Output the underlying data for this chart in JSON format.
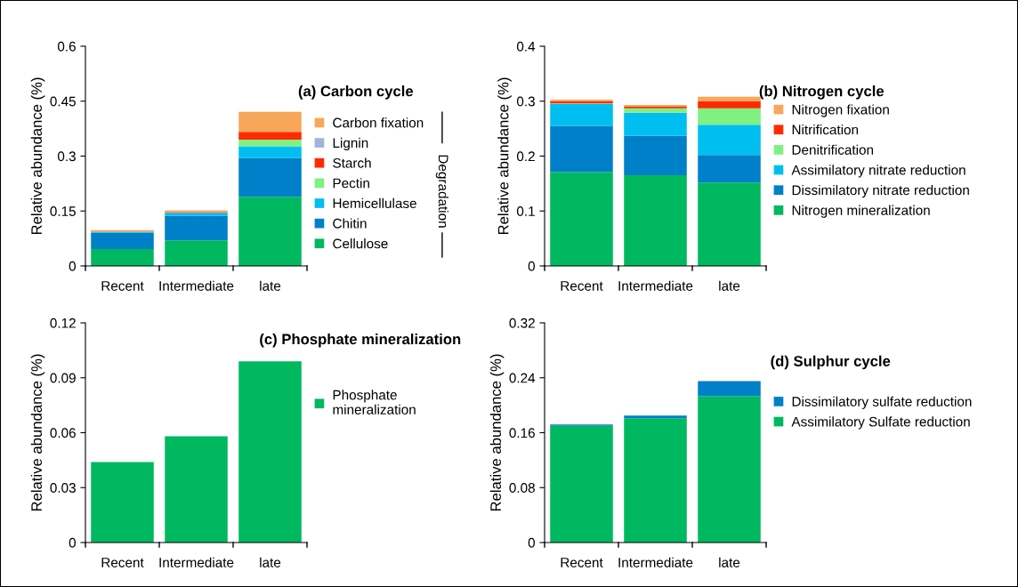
{
  "chart_data": [
    {
      "type": "bar",
      "title": "(a) Carbon cycle",
      "ylabel": "Relative abundance (%)",
      "categories": [
        "Recent",
        "Intermediate",
        "late"
      ],
      "stacked": true,
      "ylim": [
        0,
        0.6
      ],
      "yticks": [
        0,
        0.15,
        0.3,
        0.45,
        0.6
      ],
      "legend": "right",
      "grid": false,
      "annotations": [
        "Degradation"
      ],
      "series": [
        {
          "name": "Cellulose",
          "color": "#00b85f",
          "values": [
            0.046,
            0.07,
            0.189
          ]
        },
        {
          "name": "Chitin",
          "color": "#0080c8",
          "values": [
            0.045,
            0.067,
            0.106
          ]
        },
        {
          "name": "Hemicellulase",
          "color": "#00bff0",
          "values": [
            0.002,
            0.008,
            0.032
          ]
        },
        {
          "name": "Pectin",
          "color": "#80f080",
          "values": [
            0.001,
            null,
            0.018
          ]
        },
        {
          "name": "Starch",
          "color": "#ff2a00",
          "values": [
            0.002,
            0.002,
            0.021
          ]
        },
        {
          "name": "Lignin",
          "color": "#a0b4d8",
          "values": [
            0.0,
            0.0,
            null
          ]
        },
        {
          "name": "Carbon fixation",
          "color": "#f8a65a",
          "values": [
            0.002,
            0.005,
            0.055
          ]
        }
      ]
    },
    {
      "type": "bar",
      "title": "(b) Nitrogen cycle",
      "ylabel": "Relative abundance (%)",
      "categories": [
        "Recent",
        "Intermediate",
        "late"
      ],
      "stacked": true,
      "ylim": [
        0,
        0.4
      ],
      "yticks": [
        0,
        0.1,
        0.2,
        0.3,
        0.4
      ],
      "legend": "right",
      "grid": false,
      "series": [
        {
          "name": "Nitrogen mineralization",
          "color": "#00b85f",
          "values": [
            0.171,
            0.165,
            0.152
          ]
        },
        {
          "name": "Dissimilatory nitrate reduction",
          "color": "#0080c8",
          "values": [
            0.084,
            0.072,
            0.05
          ]
        },
        {
          "name": "Assimilatory nitrate reduction",
          "color": "#00bff0",
          "values": [
            0.04,
            0.042,
            0.055
          ]
        },
        {
          "name": "Denitrification",
          "color": "#80f080",
          "values": [
            0.001,
            0.008,
            0.03
          ]
        },
        {
          "name": "Nitrification",
          "color": "#ff2a00",
          "values": [
            0.004,
            0.003,
            0.013
          ]
        },
        {
          "name": "Nitrogen fixation",
          "color": "#f8a65a",
          "values": [
            0.003,
            0.003,
            0.008
          ]
        }
      ]
    },
    {
      "type": "bar",
      "title": "(c) Phosphate mineralization",
      "ylabel": "Relative abundance (%)",
      "categories": [
        "Recent",
        "Intermediate",
        "late"
      ],
      "stacked": true,
      "ylim": [
        0,
        0.12
      ],
      "yticks": [
        0,
        0.03,
        0.06,
        0.09,
        0.12
      ],
      "legend": "right",
      "grid": false,
      "series": [
        {
          "name": "Phosphate\nmineralization",
          "color": "#00b85f",
          "values": [
            0.044,
            0.058,
            0.099
          ]
        }
      ]
    },
    {
      "type": "bar",
      "title": "(d) Sulphur cycle",
      "ylabel": "Relative abundance (%)",
      "categories": [
        "Recent",
        "Intermediate",
        "late"
      ],
      "stacked": true,
      "ylim": [
        0,
        0.32
      ],
      "yticks": [
        0,
        0.08,
        0.16,
        0.24,
        0.32
      ],
      "legend": "right",
      "grid": false,
      "series": [
        {
          "name": "Assimilatory Sulfate reduction",
          "color": "#00b85f",
          "values": [
            0.17,
            0.181,
            0.213
          ]
        },
        {
          "name": "Dissimilatory sulfate reduction",
          "color": "#0080c8",
          "values": [
            0.002,
            0.004,
            0.022
          ]
        }
      ]
    }
  ]
}
